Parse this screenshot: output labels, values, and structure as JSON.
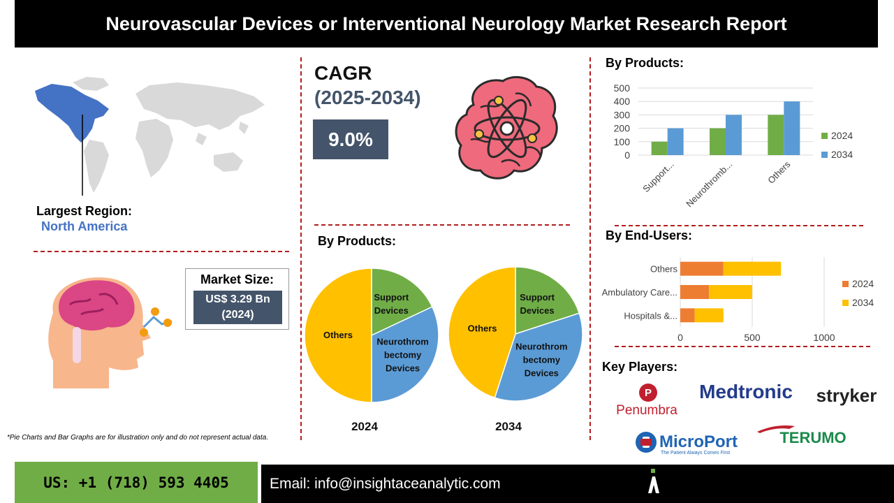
{
  "header": {
    "title": "Neurovascular Devices or Interventional Neurology Market Research Report"
  },
  "region": {
    "label": "Largest Region:",
    "value": "North America"
  },
  "cagr": {
    "label": "CAGR",
    "period": "(2025-2034)",
    "value": "9.0%"
  },
  "market_size": {
    "label": "Market Size:",
    "value": "US$ 3.29 Bn",
    "year": "(2024)"
  },
  "pie_section": {
    "title": "By Products:"
  },
  "bar_products_section": {
    "title": "By Products:"
  },
  "bar_endusers_section": {
    "title": "By End-Users:"
  },
  "key_players": {
    "title": "Key Players:",
    "logos": [
      "Penumbra",
      "Medtronic",
      "stryker",
      "MicroPort",
      "The Patient Always Comes First",
      "TERUMO"
    ]
  },
  "note": "*Pie Charts and Bar Graphs are for illustration only and do not represent actual data.",
  "footer": {
    "phone": "US: +1 (718) 593 4405",
    "email": "Email: info@insightaceanalytic.com"
  },
  "colors": {
    "green": "#70ad47",
    "blue": "#5b9bd5",
    "orange": "#ed7d31",
    "yellow": "#ffc000",
    "slate": "#44546a",
    "dash_red": "#b01c1c"
  },
  "icons": [
    "world-map-icon",
    "brain-atom-icon",
    "head-brain-icon",
    "insightace-logo-icon"
  ],
  "chart_data": [
    {
      "type": "pie",
      "title": "2024",
      "slices": [
        {
          "label": "Support Devices",
          "value": 18,
          "color": "#70ad47"
        },
        {
          "label": "Neurothrombectomy Devices",
          "value": 32,
          "color": "#5b9bd5"
        },
        {
          "label": "Others",
          "value": 50,
          "color": "#ffc000"
        }
      ]
    },
    {
      "type": "pie",
      "title": "2034",
      "slices": [
        {
          "label": "Support Devices",
          "value": 20,
          "color": "#70ad47"
        },
        {
          "label": "Neurothrombectomy Devices",
          "value": 35,
          "color": "#5b9bd5"
        },
        {
          "label": "Others",
          "value": 45,
          "color": "#ffc000"
        }
      ]
    },
    {
      "type": "bar",
      "orientation": "vertical",
      "categories": [
        "Support...",
        "Neurothromb...",
        "Others"
      ],
      "series": [
        {
          "name": "2024",
          "values": [
            100,
            200,
            300
          ],
          "color": "#70ad47"
        },
        {
          "name": "2034",
          "values": [
            200,
            300,
            400
          ],
          "color": "#5b9bd5"
        }
      ],
      "ylim": [
        0,
        500
      ],
      "yticks": [
        0,
        100,
        200,
        300,
        400,
        500
      ],
      "grid": true,
      "legend": "right"
    },
    {
      "type": "bar",
      "orientation": "horizontal",
      "stacked": true,
      "categories": [
        "Hospitals &...",
        "Ambulatory Care...",
        "Others"
      ],
      "series": [
        {
          "name": "2024",
          "values": [
            100,
            200,
            300
          ],
          "color": "#ed7d31"
        },
        {
          "name": "2034",
          "values": [
            200,
            300,
            400
          ],
          "color": "#ffc000"
        }
      ],
      "xlim": [
        0,
        1000
      ],
      "xticks": [
        0,
        500,
        1000
      ],
      "grid": true,
      "legend": "right"
    }
  ]
}
